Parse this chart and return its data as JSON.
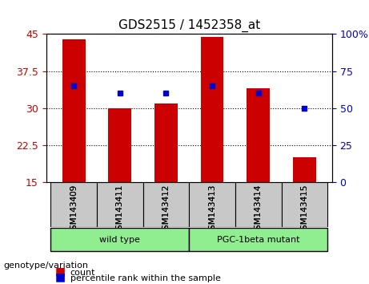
{
  "title": "GDS2515 / 1452358_at",
  "samples": [
    "GSM143409",
    "GSM143411",
    "GSM143412",
    "GSM143413",
    "GSM143414",
    "GSM143415"
  ],
  "bar_values": [
    44.0,
    30.0,
    31.0,
    44.5,
    34.0,
    20.0
  ],
  "percentile_values": [
    65,
    60,
    60,
    65,
    60,
    50
  ],
  "bar_color": "#cc0000",
  "marker_color": "#0000cc",
  "ylim_left": [
    15,
    45
  ],
  "ylim_right": [
    0,
    100
  ],
  "yticks_left": [
    15,
    22.5,
    30,
    37.5,
    45
  ],
  "yticks_right": [
    0,
    25,
    50,
    75,
    100
  ],
  "ytick_labels_left": [
    "15",
    "22.5",
    "30",
    "37.5",
    "45"
  ],
  "ytick_labels_right": [
    "0",
    "25",
    "50",
    "75",
    "100%"
  ],
  "groups": [
    {
      "label": "wild type",
      "indices": [
        0,
        1,
        2
      ],
      "color": "#90ee90"
    },
    {
      "label": "PGC-1beta mutant",
      "indices": [
        3,
        4,
        5
      ],
      "color": "#90ee90"
    }
  ],
  "group_label_prefix": "genotype/variation",
  "legend_count_label": "count",
  "legend_percentile_label": "percentile rank within the sample",
  "grid_style": "dotted",
  "bar_width": 0.5,
  "background_color": "#ffffff",
  "plot_bg_color": "#ffffff",
  "tick_label_area_bg": "#c8c8c8"
}
